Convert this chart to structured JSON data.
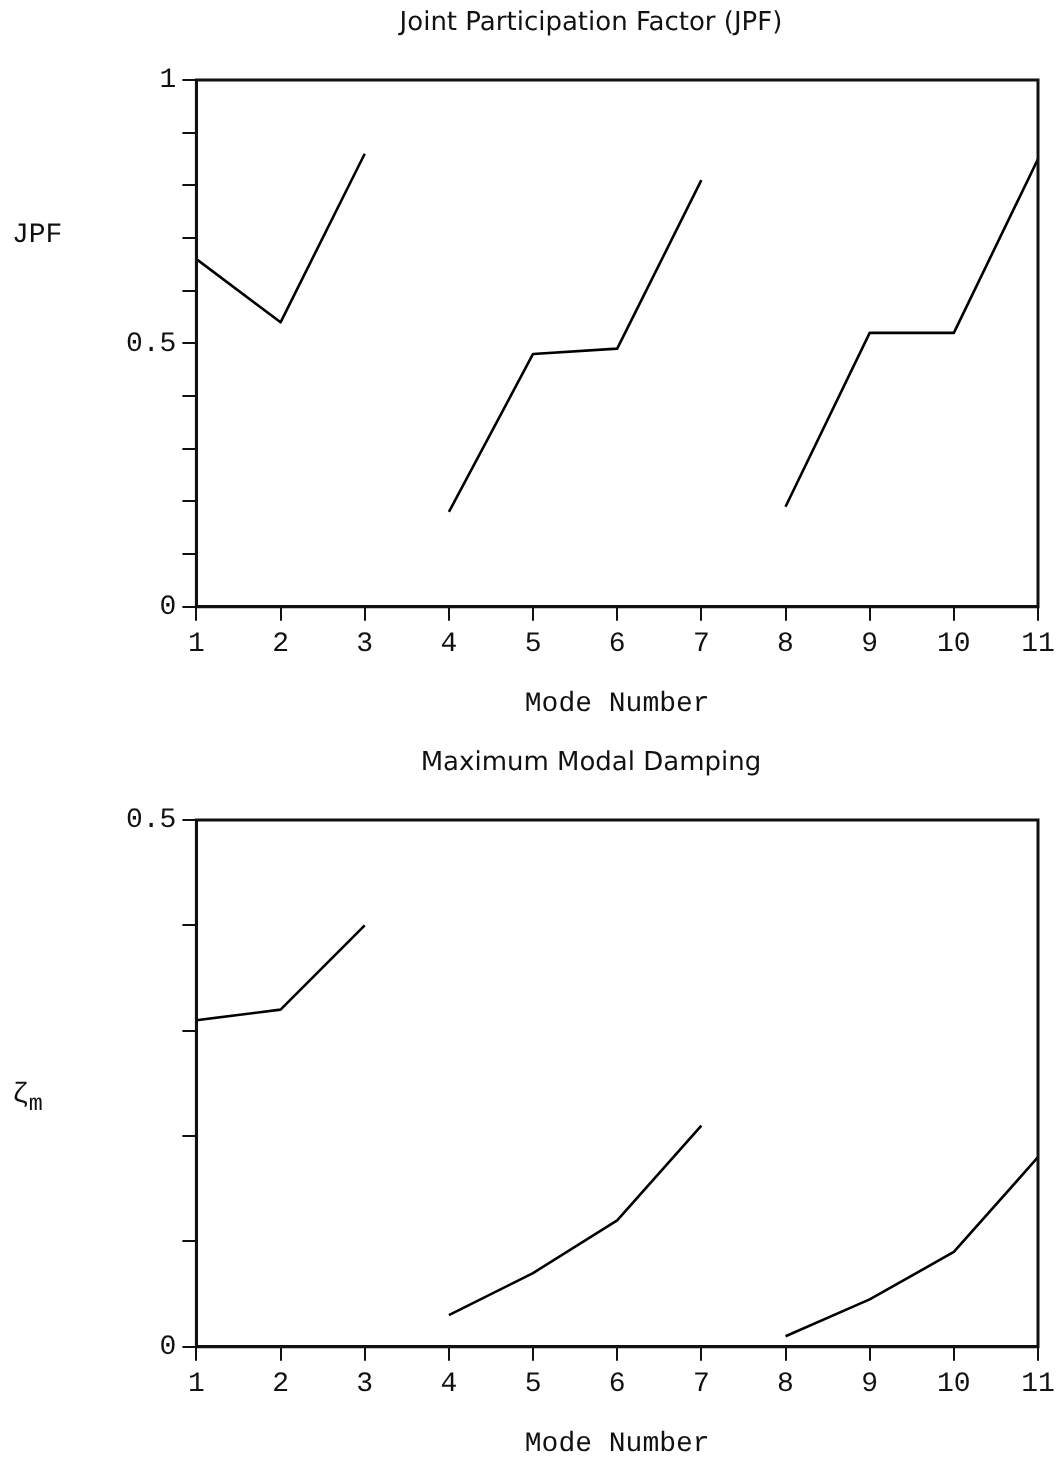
{
  "chart_data": [
    {
      "type": "line",
      "title": "Joint Participation Factor (JPF)",
      "xlabel": "Mode Number",
      "ylabel": "JPF",
      "xlim": [
        1,
        11
      ],
      "xticks": [
        1,
        2,
        3,
        4,
        5,
        6,
        7,
        8,
        9,
        10,
        11
      ],
      "ylim": [
        0,
        1
      ],
      "yticks": [
        0,
        {
          "value": 0.1,
          "label": null
        },
        {
          "value": 0.2,
          "label": null
        },
        {
          "value": 0.3,
          "label": null
        },
        {
          "value": 0.4,
          "label": null
        },
        0.5,
        {
          "value": 0.6,
          "label": null
        },
        {
          "value": 0.7,
          "label": null
        },
        {
          "value": 0.8,
          "label": null
        },
        {
          "value": 0.9,
          "label": null
        },
        1
      ],
      "grid": false,
      "marker": "none",
      "line_style": "solid",
      "series": [
        {
          "color": "#000000",
          "x": [
            1,
            2,
            3
          ],
          "values": [
            0.66,
            0.54,
            0.86
          ]
        },
        {
          "color": "#000000",
          "x": [
            4,
            5,
            6,
            7
          ],
          "values": [
            0.18,
            0.48,
            0.49,
            0.81
          ]
        },
        {
          "color": "#000000",
          "x": [
            8,
            9,
            10,
            11
          ],
          "values": [
            0.19,
            0.52,
            0.52,
            0.85
          ]
        }
      ]
    },
    {
      "type": "line",
      "title": "Maximum Modal Damping",
      "xlabel": "Mode Number",
      "ylabel": "ζ$_{m}$",
      "xlim": [
        1,
        11
      ],
      "xticks": [
        1,
        2,
        3,
        4,
        5,
        6,
        7,
        8,
        9,
        10,
        11
      ],
      "ylim": [
        0,
        0.5
      ],
      "yticks": [
        0,
        {
          "value": 0.1,
          "label": null
        },
        {
          "value": 0.2,
          "label": null
        },
        {
          "value": 0.3,
          "label": null
        },
        {
          "value": 0.4,
          "label": null
        },
        0.5
      ],
      "grid": false,
      "marker": "none",
      "line_style": "solid",
      "series": [
        {
          "color": "#000000",
          "x": [
            1,
            2,
            3
          ],
          "values": [
            0.31,
            0.32,
            0.4
          ]
        },
        {
          "color": "#000000",
          "x": [
            4,
            5,
            6,
            7
          ],
          "values": [
            0.03,
            0.07,
            0.12,
            0.21
          ]
        },
        {
          "color": "#000000",
          "x": [
            8,
            9,
            10,
            11
          ],
          "values": [
            0.01,
            0.045,
            0.09,
            0.18
          ]
        }
      ]
    }
  ]
}
